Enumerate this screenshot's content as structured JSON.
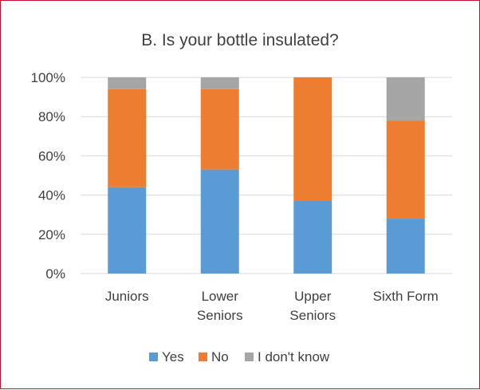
{
  "chart_data": {
    "type": "bar",
    "stacked": true,
    "title": "B. Is your bottle insulated?",
    "xlabel": "",
    "ylabel": "",
    "categories": [
      "Juniors",
      "Lower Seniors",
      "Upper Seniors",
      "Sixth Form"
    ],
    "series": [
      {
        "name": "Yes",
        "color": "#5b9bd5",
        "values": [
          44,
          53,
          37,
          28
        ]
      },
      {
        "name": "No",
        "color": "#ed7d31",
        "values": [
          50,
          41,
          63,
          50
        ]
      },
      {
        "name": "I don't know",
        "color": "#a5a5a5",
        "values": [
          6,
          6,
          0,
          22
        ]
      }
    ],
    "ylim": [
      0,
      100
    ],
    "yticks": [
      "0%",
      "20%",
      "40%",
      "60%",
      "80%",
      "100%"
    ],
    "grid": true,
    "legend": "bottom"
  }
}
